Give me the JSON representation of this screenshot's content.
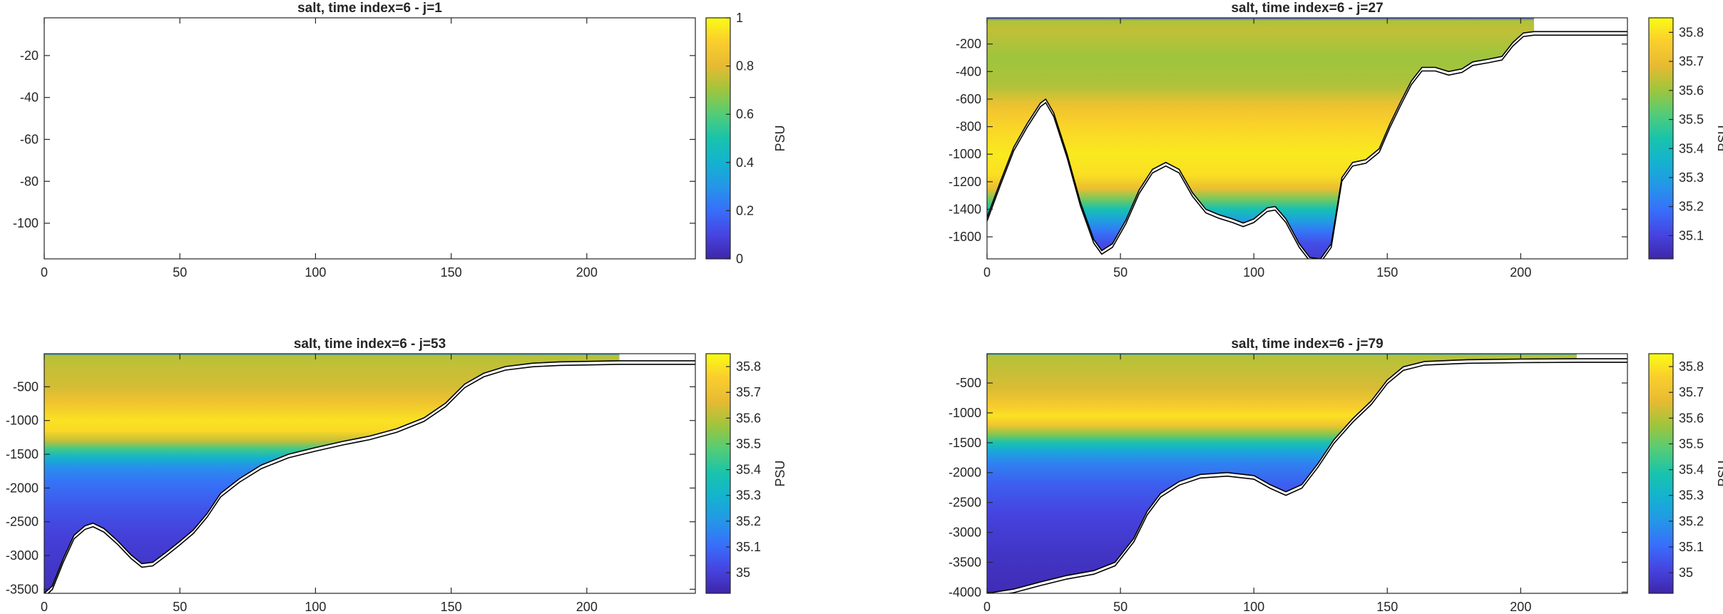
{
  "chart_data": [
    {
      "type": "heatmap",
      "title": "salt, time index=6 - j=1",
      "xlabel": "",
      "ylabel": "",
      "xlim": [
        0,
        240
      ],
      "ylim": [
        -117,
        -2
      ],
      "xticks": [
        "0",
        "50",
        "100",
        "150",
        "200"
      ],
      "yticks": [
        "-20",
        "-40",
        "-60",
        "-80",
        "-100"
      ],
      "colorbar": {
        "label": "PSU",
        "range": [
          0,
          1
        ],
        "ticks": [
          "0",
          "0.2",
          "0.4",
          "0.6",
          "0.8",
          "1"
        ]
      },
      "colormap": "parula",
      "has_field": false,
      "bottom_depth": [],
      "shelf_end_x": 0,
      "shelf_depth": 0,
      "salinity_profile": []
    },
    {
      "type": "heatmap",
      "title": "salt, time index=6 - j=27",
      "xlabel": "",
      "ylabel": "",
      "xlim": [
        0,
        240
      ],
      "ylim": [
        -1760,
        -10
      ],
      "xticks": [
        "0",
        "50",
        "100",
        "150",
        "200"
      ],
      "yticks": [
        "-200",
        "-400",
        "-600",
        "-800",
        "-1000",
        "-1200",
        "-1400",
        "-1600"
      ],
      "colorbar": {
        "label": "PSU",
        "range": [
          35.02,
          35.85
        ],
        "ticks": [
          "35.1",
          "35.2",
          "35.3",
          "35.4",
          "35.5",
          "35.6",
          "35.7",
          "35.8"
        ]
      },
      "colormap": "parula",
      "has_field": true,
      "bottom_depth": [
        [
          0,
          -1460
        ],
        [
          5,
          -1200
        ],
        [
          10,
          -950
        ],
        [
          15,
          -780
        ],
        [
          20,
          -630
        ],
        [
          22,
          -600
        ],
        [
          25,
          -700
        ],
        [
          30,
          -1000
        ],
        [
          35,
          -1350
        ],
        [
          40,
          -1620
        ],
        [
          43,
          -1700
        ],
        [
          47,
          -1650
        ],
        [
          52,
          -1480
        ],
        [
          57,
          -1260
        ],
        [
          62,
          -1110
        ],
        [
          67,
          -1060
        ],
        [
          72,
          -1110
        ],
        [
          77,
          -1280
        ],
        [
          82,
          -1400
        ],
        [
          87,
          -1440
        ],
        [
          92,
          -1470
        ],
        [
          96,
          -1500
        ],
        [
          100,
          -1470
        ],
        [
          105,
          -1390
        ],
        [
          108,
          -1380
        ],
        [
          112,
          -1470
        ],
        [
          117,
          -1650
        ],
        [
          121,
          -1750
        ],
        [
          125,
          -1760
        ],
        [
          129,
          -1650
        ],
        [
          133,
          -1170
        ],
        [
          137,
          -1060
        ],
        [
          142,
          -1040
        ],
        [
          147,
          -960
        ],
        [
          151,
          -780
        ],
        [
          155,
          -620
        ],
        [
          159,
          -470
        ],
        [
          163,
          -370
        ],
        [
          168,
          -370
        ],
        [
          173,
          -400
        ],
        [
          178,
          -380
        ],
        [
          182,
          -330
        ],
        [
          188,
          -310
        ],
        [
          193,
          -290
        ],
        [
          197,
          -190
        ],
        [
          201,
          -120
        ],
        [
          205,
          -110
        ],
        [
          240,
          -110
        ]
      ],
      "shelf_end_x": 205,
      "shelf_depth": -110,
      "salinity_profile": [
        [
          -10,
          35.15
        ],
        [
          -30,
          35.62
        ],
        [
          -100,
          35.64
        ],
        [
          -300,
          35.6
        ],
        [
          -500,
          35.62
        ],
        [
          -650,
          35.72
        ],
        [
          -800,
          35.78
        ],
        [
          -1000,
          35.82
        ],
        [
          -1150,
          35.8
        ],
        [
          -1250,
          35.7
        ],
        [
          -1330,
          35.55
        ],
        [
          -1400,
          35.42
        ],
        [
          -1480,
          35.3
        ],
        [
          -1560,
          35.2
        ],
        [
          -1650,
          35.12
        ],
        [
          -1760,
          35.08
        ]
      ]
    },
    {
      "type": "heatmap",
      "title": "salt, time index=6 - j=53",
      "xlabel": "",
      "ylabel": "",
      "xlim": [
        0,
        240
      ],
      "ylim": [
        -3560,
        -10
      ],
      "xticks": [
        "0",
        "50",
        "100",
        "150",
        "200"
      ],
      "yticks": [
        "-500",
        "-1000",
        "-1500",
        "-2000",
        "-2500",
        "-3000",
        "-3500"
      ],
      "colorbar": {
        "label": "PSU",
        "range": [
          34.92,
          35.85
        ],
        "ticks": [
          "35",
          "35.1",
          "35.2",
          "35.3",
          "35.4",
          "35.5",
          "35.6",
          "35.7",
          "35.8"
        ]
      },
      "colormap": "parula",
      "has_field": true,
      "bottom_depth": [
        [
          0,
          -3560
        ],
        [
          3,
          -3450
        ],
        [
          7,
          -3050
        ],
        [
          11,
          -2700
        ],
        [
          15,
          -2560
        ],
        [
          18,
          -2520
        ],
        [
          22,
          -2600
        ],
        [
          27,
          -2780
        ],
        [
          32,
          -2990
        ],
        [
          36,
          -3120
        ],
        [
          40,
          -3100
        ],
        [
          45,
          -2950
        ],
        [
          50,
          -2790
        ],
        [
          55,
          -2620
        ],
        [
          60,
          -2380
        ],
        [
          65,
          -2080
        ],
        [
          72,
          -1860
        ],
        [
          80,
          -1660
        ],
        [
          90,
          -1500
        ],
        [
          100,
          -1400
        ],
        [
          110,
          -1310
        ],
        [
          120,
          -1230
        ],
        [
          130,
          -1120
        ],
        [
          140,
          -960
        ],
        [
          148,
          -740
        ],
        [
          155,
          -460
        ],
        [
          162,
          -300
        ],
        [
          170,
          -200
        ],
        [
          180,
          -150
        ],
        [
          190,
          -130
        ],
        [
          212,
          -115
        ],
        [
          240,
          -115
        ]
      ],
      "shelf_end_x": 212,
      "shelf_depth": -115,
      "salinity_profile": [
        [
          -10,
          35.2
        ],
        [
          -40,
          35.6
        ],
        [
          -200,
          35.62
        ],
        [
          -500,
          35.64
        ],
        [
          -700,
          35.7
        ],
        [
          -1000,
          35.8
        ],
        [
          -1150,
          35.78
        ],
        [
          -1300,
          35.62
        ],
        [
          -1420,
          35.45
        ],
        [
          -1550,
          35.3
        ],
        [
          -1700,
          35.18
        ],
        [
          -1900,
          35.12
        ],
        [
          -2300,
          35.05
        ],
        [
          -2700,
          35.0
        ],
        [
          -3200,
          34.97
        ],
        [
          -3560,
          34.95
        ]
      ]
    },
    {
      "type": "heatmap",
      "title": "salt, time index=6 - j=79",
      "xlabel": "",
      "ylabel": "",
      "xlim": [
        0,
        240
      ],
      "ylim": [
        -4020,
        -10
      ],
      "xticks": [
        "0",
        "50",
        "100",
        "150",
        "200"
      ],
      "yticks": [
        "-500",
        "-1000",
        "-1500",
        "-2000",
        "-2500",
        "-3000",
        "-3500",
        "-4000"
      ],
      "colorbar": {
        "label": "PSU",
        "range": [
          34.92,
          35.85
        ],
        "ticks": [
          "35",
          "35.1",
          "35.2",
          "35.3",
          "35.4",
          "35.5",
          "35.6",
          "35.7",
          "35.8"
        ]
      },
      "colormap": "parula",
      "has_field": true,
      "bottom_depth": [
        [
          0,
          -4020
        ],
        [
          10,
          -3950
        ],
        [
          20,
          -3830
        ],
        [
          30,
          -3720
        ],
        [
          40,
          -3640
        ],
        [
          48,
          -3500
        ],
        [
          55,
          -3100
        ],
        [
          60,
          -2650
        ],
        [
          65,
          -2350
        ],
        [
          72,
          -2150
        ],
        [
          80,
          -2030
        ],
        [
          90,
          -2000
        ],
        [
          100,
          -2050
        ],
        [
          106,
          -2200
        ],
        [
          112,
          -2320
        ],
        [
          118,
          -2200
        ],
        [
          124,
          -1850
        ],
        [
          130,
          -1450
        ],
        [
          137,
          -1100
        ],
        [
          144,
          -800
        ],
        [
          150,
          -450
        ],
        [
          156,
          -230
        ],
        [
          164,
          -140
        ],
        [
          180,
          -110
        ],
        [
          200,
          -100
        ],
        [
          221,
          -95
        ],
        [
          240,
          -95
        ]
      ],
      "shelf_end_x": 221,
      "shelf_depth": -95,
      "salinity_profile": [
        [
          -10,
          35.25
        ],
        [
          -40,
          35.6
        ],
        [
          -300,
          35.62
        ],
        [
          -600,
          35.65
        ],
        [
          -900,
          35.75
        ],
        [
          -1050,
          35.8
        ],
        [
          -1200,
          35.72
        ],
        [
          -1350,
          35.55
        ],
        [
          -1500,
          35.38
        ],
        [
          -1650,
          35.25
        ],
        [
          -1850,
          35.15
        ],
        [
          -2200,
          35.07
        ],
        [
          -2700,
          35.01
        ],
        [
          -3300,
          34.97
        ],
        [
          -4020,
          34.94
        ]
      ]
    }
  ]
}
